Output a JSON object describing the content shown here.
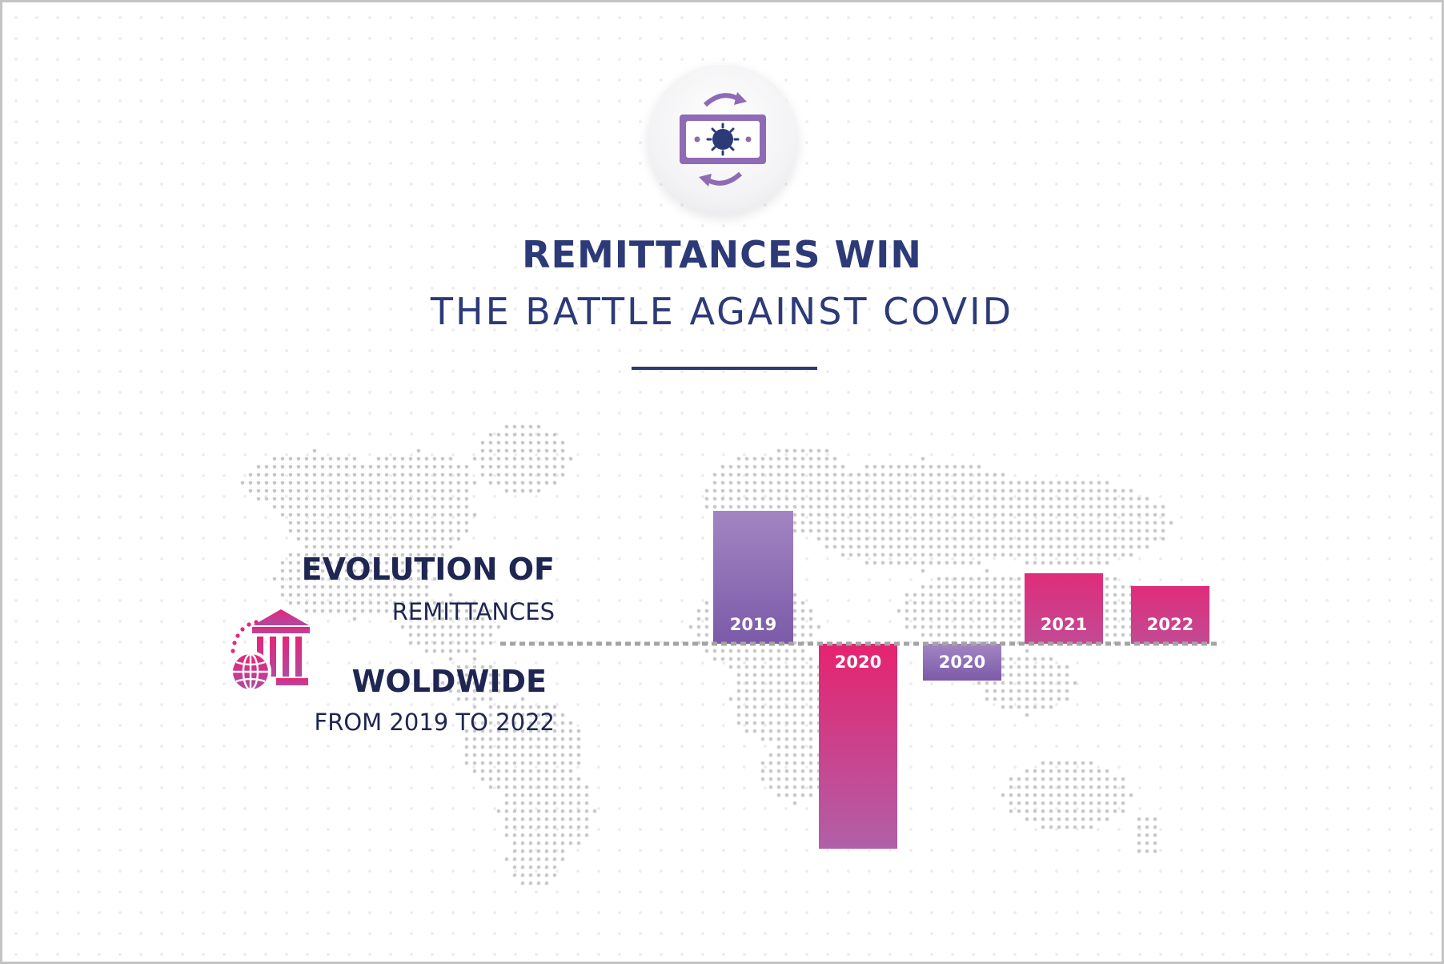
{
  "title": "REMITTANCES WIN",
  "subtitle": "THE BATTLE AGAINST COVID",
  "hero_icon": "money-exchange-virus-icon",
  "legend": {
    "line1": "EVOLUTION OF",
    "line2": "REMITTANCES",
    "line3": "WOLDWIDE",
    "line4": "FROM 2019 TO 2022",
    "icon": "bank-globe-icon"
  },
  "colors": {
    "navy": "#2d3a78",
    "purple": "#8f6ab5",
    "magenta": "#e5257a",
    "baseline": "#a4a4a4",
    "map_dots": "#c8c8cc"
  },
  "chart_data": {
    "type": "bar",
    "title": "",
    "xlabel": "",
    "ylabel": "",
    "categories": [
      "2019",
      "2020",
      "2020",
      "2021",
      "2022"
    ],
    "values": [
      8.3,
      -12.8,
      -2.3,
      4.4,
      3.6
    ],
    "ylim": [
      -12.8,
      8.3
    ],
    "baseline": 0,
    "grid": false,
    "legend": "none",
    "bar_colors": [
      "purple",
      "magenta-purple",
      "purple",
      "magenta",
      "magenta"
    ]
  }
}
